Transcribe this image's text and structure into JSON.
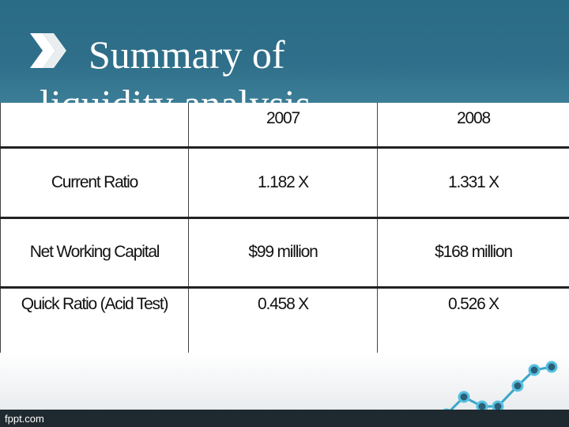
{
  "header": {
    "title_lines": [
      "Summary of",
      "liquidity analysis"
    ]
  },
  "table": {
    "columns": [
      "2007",
      "2008"
    ],
    "rows": [
      [
        "Current Ratio",
        "1.182 X",
        "1.331 X"
      ],
      [
        "Net Working Capital",
        "$99 million",
        "$168 million"
      ],
      [
        "Quick Ratio (Acid Test)",
        "0.458 X",
        "0.526 X"
      ]
    ]
  },
  "footer": {
    "site": "fppt.com"
  }
}
